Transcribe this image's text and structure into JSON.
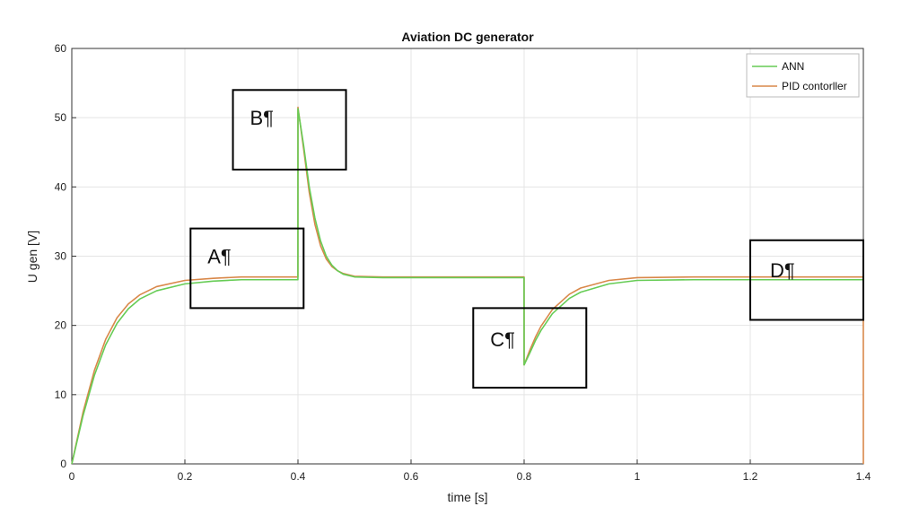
{
  "chart_data": {
    "type": "line",
    "title": "Aviation DC generator",
    "xlabel": "time [s]",
    "ylabel": "U gen [V]",
    "xlim": [
      0,
      1.4
    ],
    "ylim": [
      0,
      60
    ],
    "xticks": [
      "0",
      "0.2",
      "0.4",
      "0.6",
      "0.8",
      "1",
      "1.2",
      "1.4"
    ],
    "yticks": [
      "0",
      "10",
      "20",
      "30",
      "40",
      "50",
      "60"
    ],
    "grid": true,
    "legend_position": "top-right",
    "series": [
      {
        "name": "ANN",
        "color": "#66cc55",
        "x": [
          0,
          0.02,
          0.04,
          0.06,
          0.08,
          0.1,
          0.12,
          0.15,
          0.2,
          0.25,
          0.3,
          0.35,
          0.3999,
          0.4,
          0.41,
          0.42,
          0.43,
          0.44,
          0.45,
          0.46,
          0.47,
          0.48,
          0.5,
          0.55,
          0.6,
          0.7,
          0.7999,
          0.8,
          0.81,
          0.82,
          0.83,
          0.85,
          0.88,
          0.9,
          0.95,
          1.0,
          1.1,
          1.2,
          1.3,
          1.4
        ],
        "y": [
          0,
          7.0,
          12.8,
          17.2,
          20.3,
          22.4,
          23.8,
          25.0,
          26.0,
          26.4,
          26.6,
          26.6,
          26.6,
          51.3,
          46.0,
          40.0,
          35.5,
          32.2,
          30.0,
          28.7,
          27.9,
          27.4,
          27.0,
          26.9,
          26.9,
          26.9,
          26.9,
          14.3,
          16.0,
          17.8,
          19.3,
          21.7,
          23.9,
          24.8,
          26.0,
          26.5,
          26.6,
          26.6,
          26.6,
          26.6
        ]
      },
      {
        "name": "PID contorller",
        "color": "#d9884a",
        "x": [
          0,
          0.02,
          0.04,
          0.06,
          0.08,
          0.1,
          0.12,
          0.15,
          0.2,
          0.25,
          0.3,
          0.35,
          0.3999,
          0.4,
          0.41,
          0.42,
          0.43,
          0.44,
          0.45,
          0.46,
          0.47,
          0.48,
          0.5,
          0.55,
          0.6,
          0.7,
          0.7999,
          0.8,
          0.81,
          0.82,
          0.83,
          0.85,
          0.88,
          0.9,
          0.95,
          1.0,
          1.1,
          1.2,
          1.3,
          1.3999,
          1.4
        ],
        "y": [
          0,
          7.5,
          13.5,
          18.0,
          21.1,
          23.1,
          24.4,
          25.6,
          26.5,
          26.8,
          27.0,
          27.0,
          27.0,
          51.5,
          45.5,
          39.2,
          34.6,
          31.5,
          29.6,
          28.5,
          27.9,
          27.5,
          27.1,
          27.0,
          27.0,
          27.0,
          27.0,
          14.3,
          16.4,
          18.3,
          19.9,
          22.3,
          24.5,
          25.4,
          26.5,
          26.9,
          27.0,
          27.0,
          27.0,
          27.0,
          0
        ]
      }
    ],
    "annotations": [
      {
        "label": "A¶",
        "box": {
          "x0": 0.21,
          "x1": 0.41,
          "y0": 22.5,
          "y1": 34.0
        },
        "label_at": {
          "x": 0.24,
          "y": 30.0
        }
      },
      {
        "label": "B¶",
        "box": {
          "x0": 0.285,
          "x1": 0.485,
          "y0": 42.5,
          "y1": 54.0
        },
        "label_at": {
          "x": 0.315,
          "y": 50.0
        }
      },
      {
        "label": "C¶",
        "box": {
          "x0": 0.71,
          "x1": 0.91,
          "y0": 11.0,
          "y1": 22.5
        },
        "label_at": {
          "x": 0.74,
          "y": 18.0
        }
      },
      {
        "label": "D¶",
        "box": {
          "x0": 1.2,
          "x1": 1.4,
          "y0": 20.8,
          "y1": 32.3
        },
        "label_at": {
          "x": 1.235,
          "y": 28.0
        }
      }
    ]
  }
}
